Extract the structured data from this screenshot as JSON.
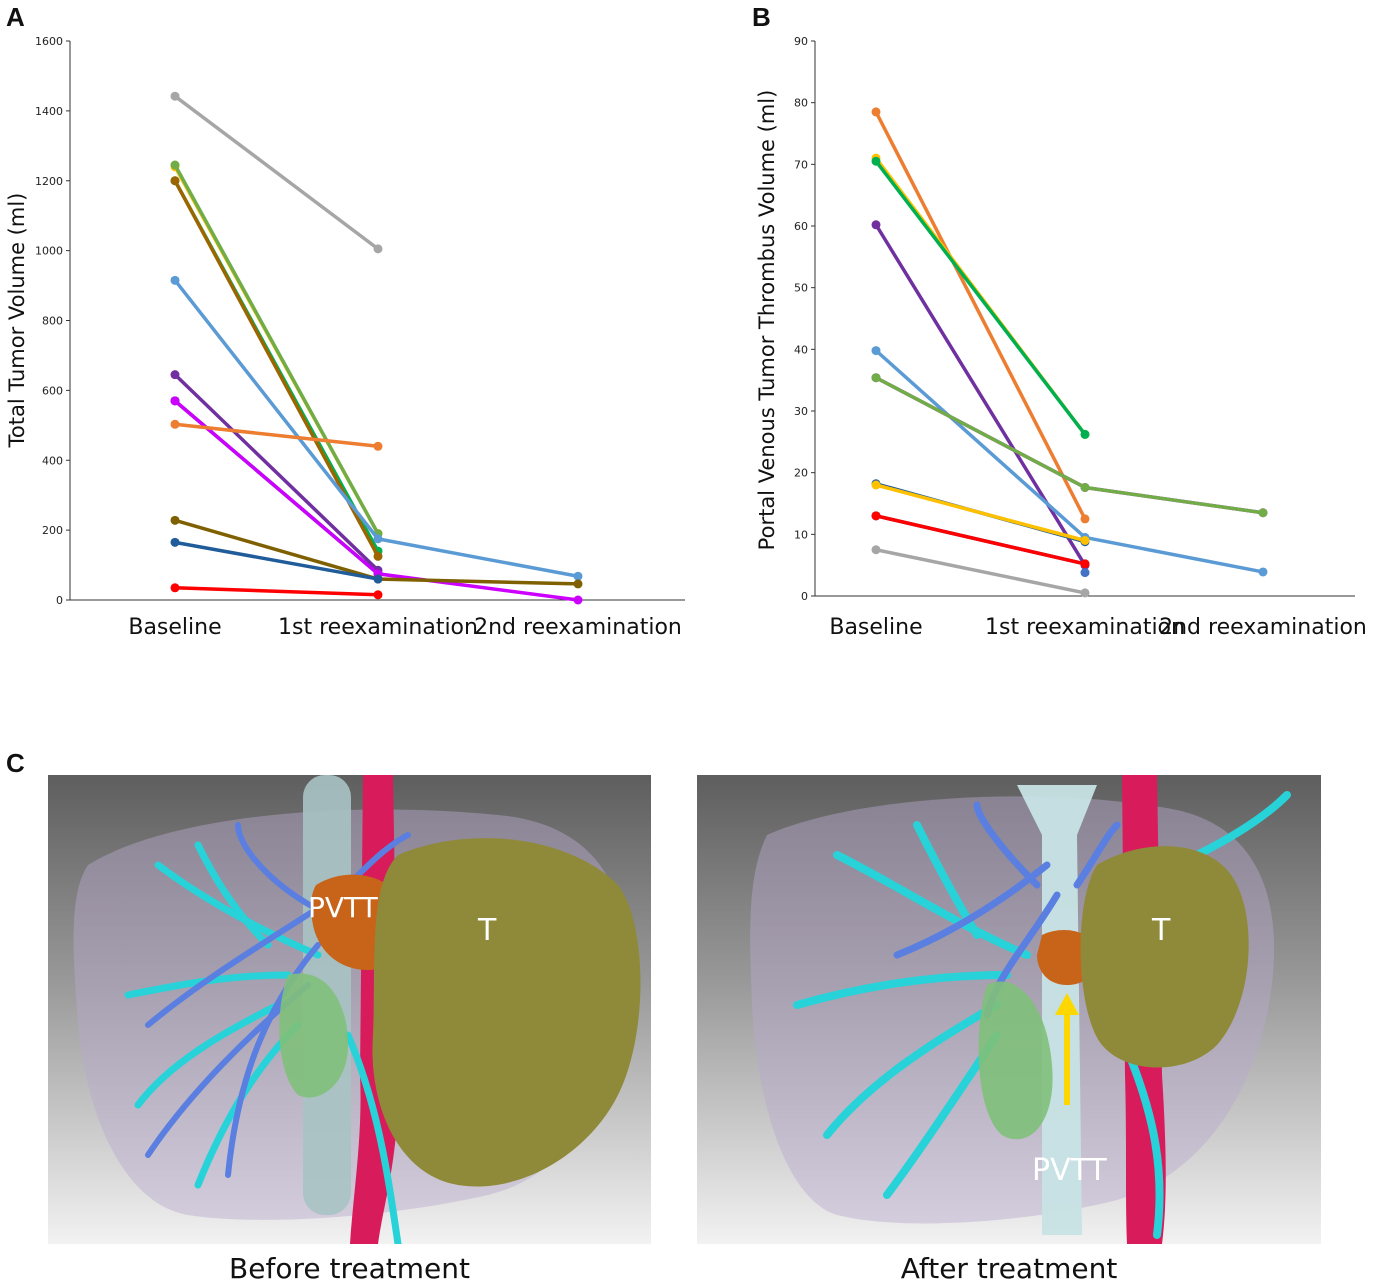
{
  "panels": {
    "a": "A",
    "b": "B",
    "c": "C"
  },
  "chart_data": [
    {
      "type": "line",
      "ylabel": "Total Tumor Volume (ml)",
      "ylim": [
        0,
        1600
      ],
      "yticks": [
        0,
        200,
        400,
        600,
        800,
        1000,
        1200,
        1400,
        1600
      ],
      "categories": [
        "Baseline",
        "1st reexamination",
        "2nd reexamination"
      ],
      "series": [
        {
          "color": "#a6a6a6",
          "values": [
            1442,
            1005,
            null
          ]
        },
        {
          "color": "#ffc000",
          "values": [
            1240,
            190,
            null
          ]
        },
        {
          "color": "#70ad47",
          "values": [
            1245,
            190,
            null
          ]
        },
        {
          "color": "#00b050",
          "values": [
            1200,
            140,
            null
          ]
        },
        {
          "color": "#9c6500",
          "values": [
            1200,
            125,
            null
          ]
        },
        {
          "color": "#5b9bd5",
          "values": [
            915,
            175,
            68
          ]
        },
        {
          "color": "#7030a0",
          "values": [
            645,
            85,
            null
          ]
        },
        {
          "color": "#203864",
          "values": [
            570,
            75,
            null
          ]
        },
        {
          "color": "#cc00ff",
          "values": [
            570,
            75,
            0
          ]
        },
        {
          "color": "#ed7d31",
          "values": [
            503,
            440,
            null
          ]
        },
        {
          "color": "#7f6000",
          "values": [
            228,
            60,
            46
          ]
        },
        {
          "color": "#1f5c99",
          "values": [
            165,
            60,
            null
          ]
        },
        {
          "color": "#ff0000",
          "values": [
            35,
            15,
            null
          ]
        }
      ]
    },
    {
      "type": "line",
      "ylabel": "Portal Venous Tumor Thrombus  Volume (ml)",
      "ylim": [
        0,
        90
      ],
      "yticks": [
        0,
        10,
        20,
        30,
        40,
        50,
        60,
        70,
        80,
        90
      ],
      "categories": [
        "Baseline",
        "1st reexamination",
        "2nd reexamination"
      ],
      "series": [
        {
          "color": "#ed7d31",
          "values": [
            78.5,
            12.5,
            null
          ]
        },
        {
          "color": "#ffc000",
          "values": [
            71,
            26.2,
            null
          ]
        },
        {
          "color": "#00b050",
          "values": [
            70.5,
            26.2,
            null
          ]
        },
        {
          "color": "#7030a0",
          "values": [
            60.2,
            5,
            null
          ]
        },
        {
          "color": "#5b9bd5",
          "values": [
            39.8,
            9.5,
            3.9
          ]
        },
        {
          "color": "#cc00ff",
          "values": [
            35.4,
            17.6,
            13.5
          ]
        },
        {
          "color": "#70ad47",
          "values": [
            35.4,
            17.6,
            13.5
          ]
        },
        {
          "color": "#1f5c99",
          "values": [
            18.2,
            8.8,
            null
          ]
        },
        {
          "color": "#ffc000",
          "values": [
            18,
            9,
            null
          ]
        },
        {
          "color": "#203864",
          "values": [
            13,
            5.2,
            null
          ]
        },
        {
          "color": "#ff0000",
          "values": [
            13,
            5.2,
            null
          ]
        },
        {
          "color": "#a6a6a6",
          "values": [
            7.5,
            0.5,
            null
          ]
        },
        {
          "color": "#4472c4",
          "values": [
            null,
            3.8,
            null
          ]
        }
      ]
    }
  ],
  "images": {
    "before": {
      "labels": [
        "PVTT",
        "T"
      ],
      "caption": "Before treatment"
    },
    "after": {
      "labels": [
        "T",
        "PVTT"
      ],
      "caption": "After treatment"
    }
  }
}
